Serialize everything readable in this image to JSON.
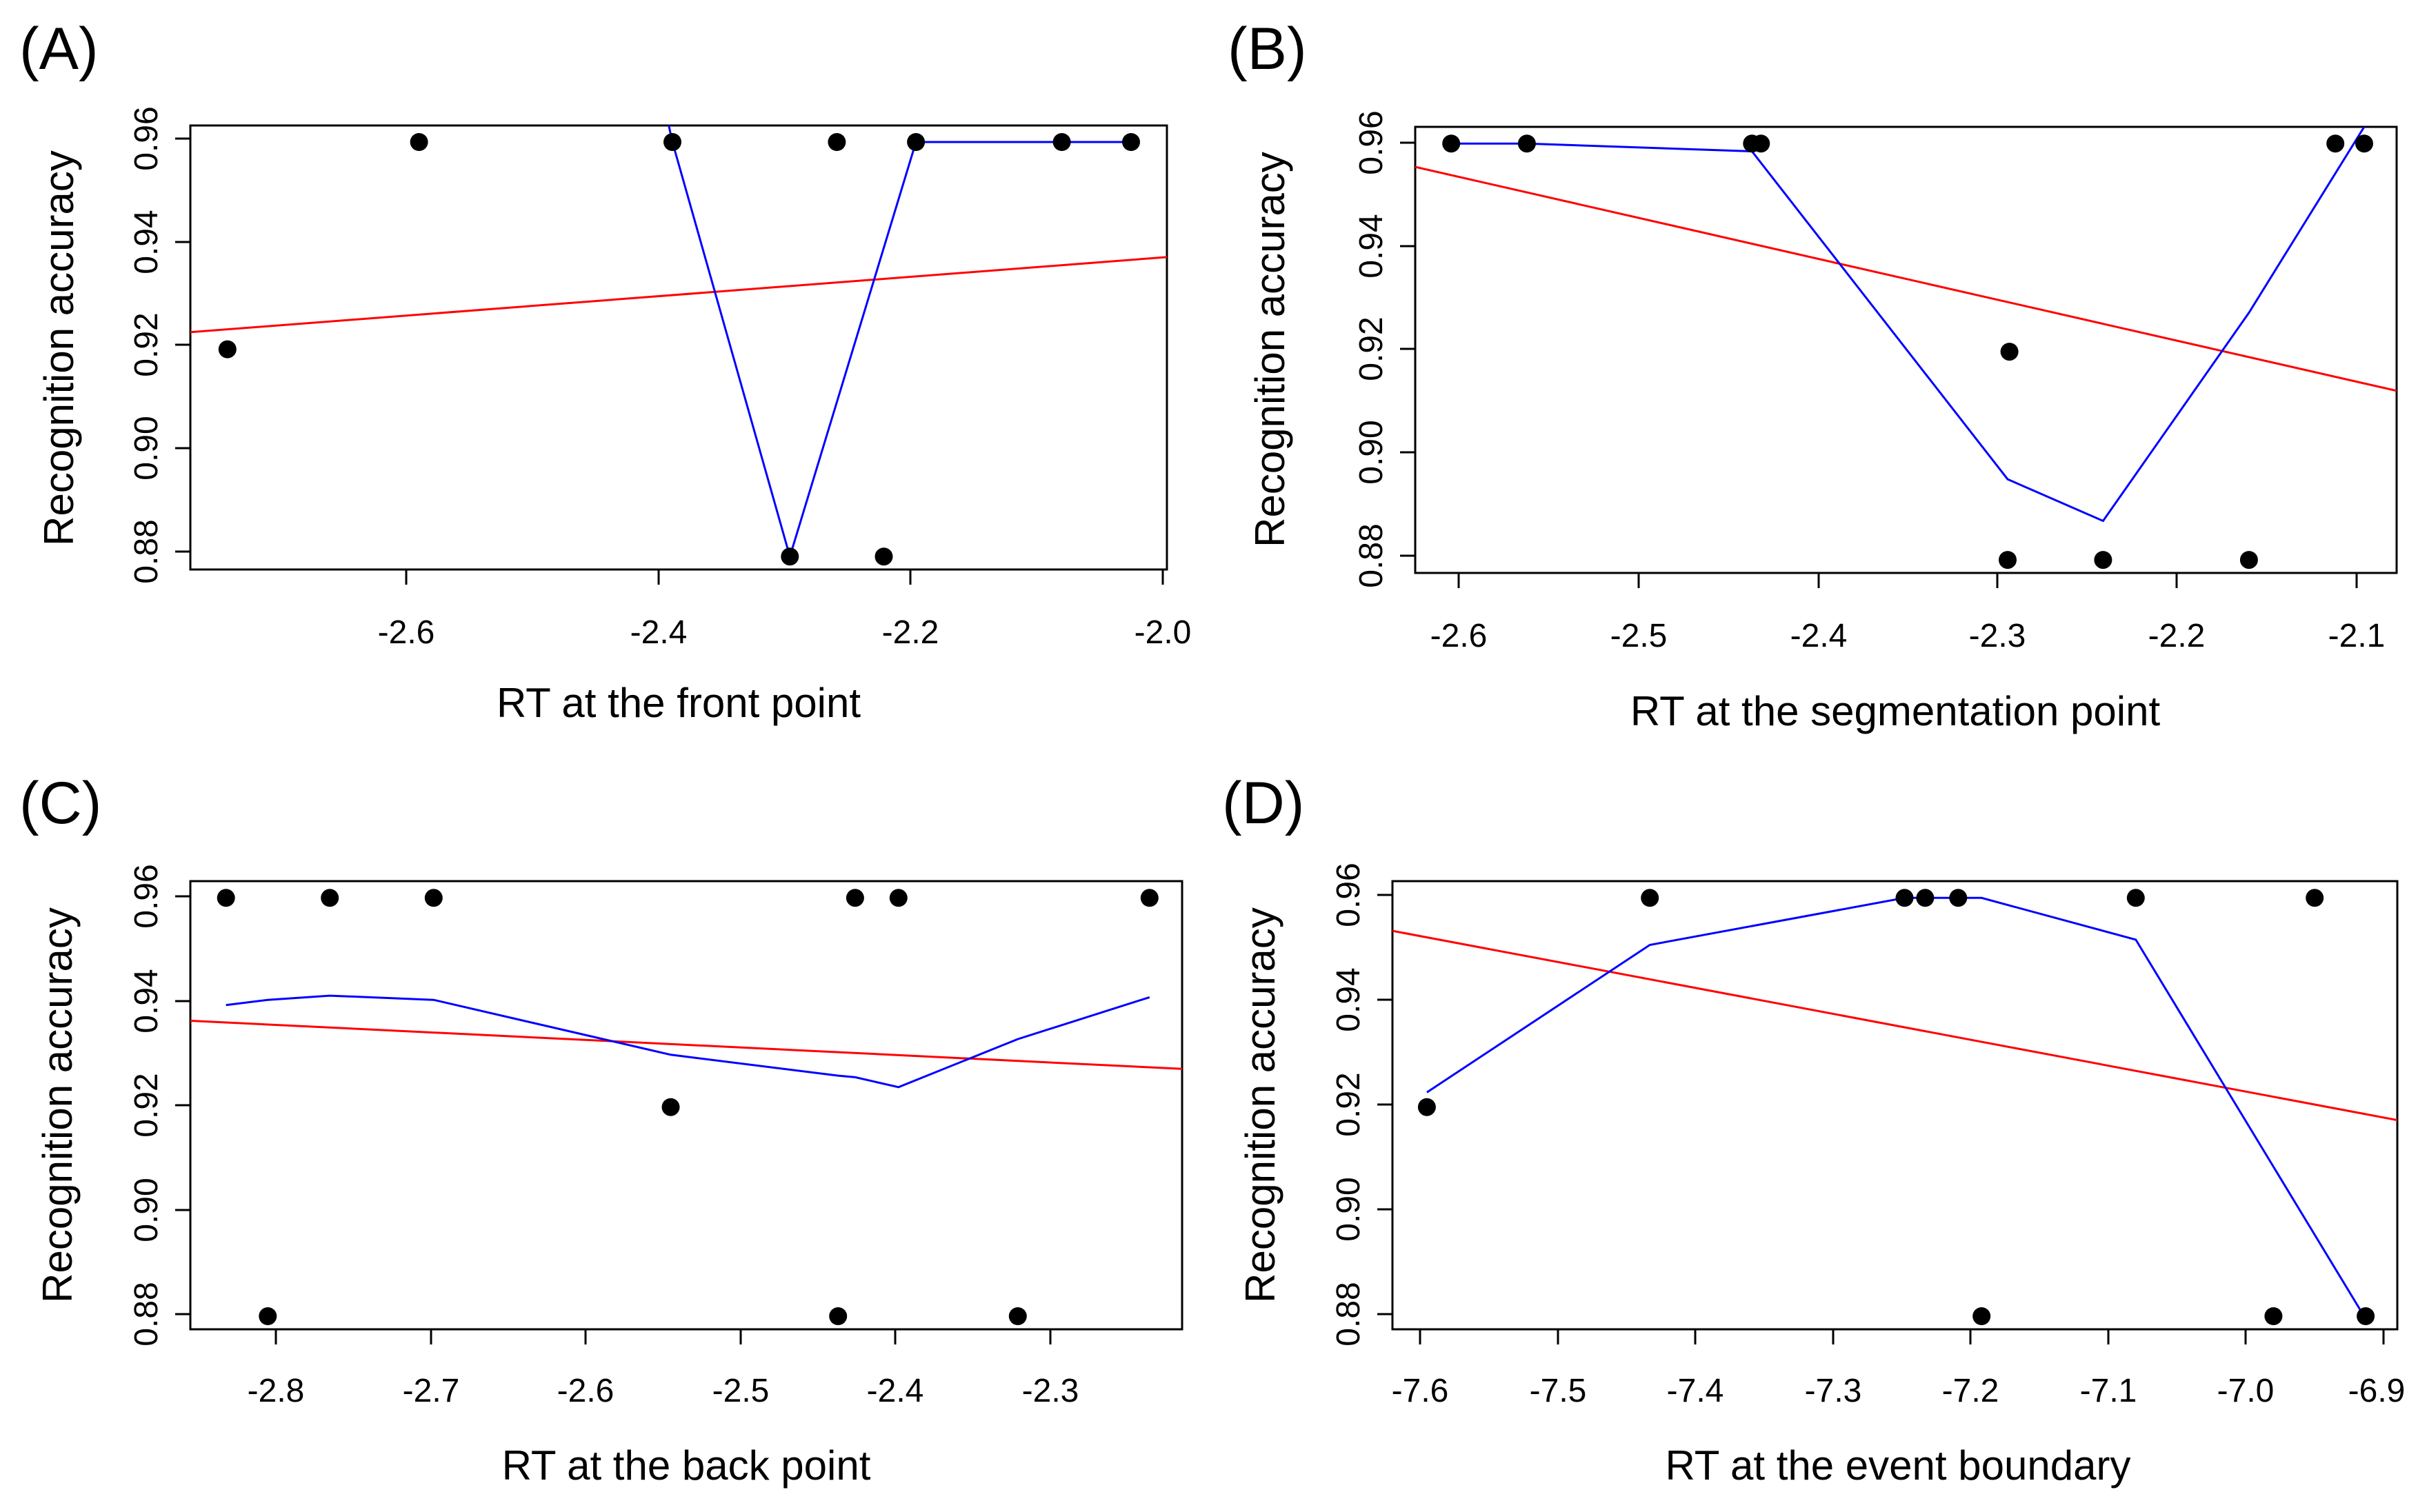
{
  "chart_data": [
    {
      "type": "scatter",
      "panel_label": "(A)",
      "xlabel": "RT at the front point",
      "ylabel": "Recognition accuracy",
      "xlim": [
        -2.785,
        -1.995
      ],
      "ylim": [
        0.8775,
        0.9632
      ],
      "xticks": [
        -2.6,
        -2.4,
        -2.2,
        -2.0
      ],
      "xtick_labels": [
        "-2.6",
        "-2.4",
        "-2.2",
        "-2.0"
      ],
      "yticks": [
        0.88,
        0.9,
        0.92,
        0.94,
        0.96
      ],
      "ytick_labels": [
        "0.88",
        "0.90",
        "0.92",
        "0.94",
        "0.96"
      ],
      "points": [
        {
          "x": -2.755,
          "y": 0.92
        },
        {
          "x": -2.6,
          "y": 0.96
        },
        {
          "x": -2.395,
          "y": 0.96
        },
        {
          "x": -2.3,
          "y": 0.88
        },
        {
          "x": -2.262,
          "y": 0.96
        },
        {
          "x": -2.224,
          "y": 0.88
        },
        {
          "x": -2.198,
          "y": 0.96
        },
        {
          "x": -2.08,
          "y": 0.96
        },
        {
          "x": -2.024,
          "y": 0.96
        }
      ],
      "series": [
        {
          "name": "linear fit",
          "color": "#ff0000",
          "x": [
            -2.785,
            -1.995
          ],
          "y": [
            0.9233,
            0.9378
          ]
        },
        {
          "name": "smoother",
          "color": "#0000ff",
          "x": [
            -2.398,
            -2.395,
            -2.3,
            -2.198,
            -2.08,
            -2.024
          ],
          "y": [
            0.9632,
            0.96,
            0.88,
            0.96,
            0.96,
            0.96
          ]
        }
      ]
    },
    {
      "type": "scatter",
      "panel_label": "(B)",
      "xlabel": "RT at the segmentation point",
      "ylabel": "Recognition accuracy",
      "xlim": [
        -2.623,
        -2.078
      ],
      "ylim": [
        0.8775,
        0.9632
      ],
      "xticks": [
        -2.6,
        -2.5,
        -2.4,
        -2.3,
        -2.2,
        -2.1
      ],
      "xtick_labels": [
        "-2.6",
        "-2.5",
        "-2.4",
        "-2.3",
        "-2.2",
        "-2.1"
      ],
      "yticks": [
        0.88,
        0.9,
        0.92,
        0.94,
        0.96
      ],
      "ytick_labels": [
        "0.88",
        "0.90",
        "0.92",
        "0.94",
        "0.96"
      ],
      "points": [
        {
          "x": -2.603,
          "y": 0.96
        },
        {
          "x": -2.561,
          "y": 0.96
        },
        {
          "x": -2.436,
          "y": 0.96
        },
        {
          "x": -2.431,
          "y": 0.96
        },
        {
          "x": -2.293,
          "y": 0.92
        },
        {
          "x": -2.294,
          "y": 0.88
        },
        {
          "x": -2.241,
          "y": 0.88
        },
        {
          "x": -2.16,
          "y": 0.88
        },
        {
          "x": -2.112,
          "y": 0.96
        },
        {
          "x": -2.096,
          "y": 0.96
        }
      ],
      "series": [
        {
          "name": "linear fit",
          "color": "#ff0000",
          "x": [
            -2.623,
            -2.078
          ],
          "y": [
            0.9555,
            0.9125
          ]
        },
        {
          "name": "smoother",
          "color": "#0000ff",
          "x": [
            -2.603,
            -2.561,
            -2.436,
            -2.294,
            -2.241,
            -2.16,
            -2.096
          ],
          "y": [
            0.96,
            0.96,
            0.9585,
            0.8955,
            0.8875,
            0.9275,
            0.9632
          ]
        }
      ]
    },
    {
      "type": "scatter",
      "panel_label": "(C)",
      "xlabel": "RT at the back point",
      "ylabel": "Recognition accuracy",
      "xlim": [
        -2.853,
        -2.213
      ],
      "ylim": [
        0.8775,
        0.9632
      ],
      "xticks": [
        -2.8,
        -2.7,
        -2.6,
        -2.5,
        -2.4,
        -2.3
      ],
      "xtick_labels": [
        "-2.8",
        "-2.7",
        "-2.6",
        "-2.5",
        "-2.4",
        "-2.3"
      ],
      "yticks": [
        0.88,
        0.9,
        0.92,
        0.94,
        0.96
      ],
      "ytick_labels": [
        "0.88",
        "0.90",
        "0.92",
        "0.94",
        "0.96"
      ],
      "points": [
        {
          "x": -2.83,
          "y": 0.96
        },
        {
          "x": -2.803,
          "y": 0.88
        },
        {
          "x": -2.763,
          "y": 0.96
        },
        {
          "x": -2.696,
          "y": 0.96
        },
        {
          "x": -2.543,
          "y": 0.92
        },
        {
          "x": -2.435,
          "y": 0.88
        },
        {
          "x": -2.424,
          "y": 0.96
        },
        {
          "x": -2.396,
          "y": 0.96
        },
        {
          "x": -2.319,
          "y": 0.88
        },
        {
          "x": -2.234,
          "y": 0.96
        }
      ],
      "series": [
        {
          "name": "linear fit",
          "color": "#ff0000",
          "x": [
            -2.853,
            -2.213
          ],
          "y": [
            0.9365,
            0.9273
          ]
        },
        {
          "name": "smoother",
          "color": "#0000ff",
          "x": [
            -2.83,
            -2.803,
            -2.763,
            -2.696,
            -2.543,
            -2.435,
            -2.424,
            -2.396,
            -2.319,
            -2.234
          ],
          "y": [
            0.9395,
            0.9405,
            0.9413,
            0.9405,
            0.93,
            0.926,
            0.9257,
            0.9238,
            0.933,
            0.941
          ]
        }
      ]
    },
    {
      "type": "scatter",
      "panel_label": "(D)",
      "xlabel": "RT at the event boundary",
      "ylabel": "Recognition accuracy",
      "xlim": [
        -7.62,
        -6.89
      ],
      "ylim": [
        0.8775,
        0.9632
      ],
      "xticks": [
        -7.6,
        -7.5,
        -7.4,
        -7.3,
        -7.2,
        -7.1,
        -7.0,
        -6.9
      ],
      "xtick_labels": [
        "-7.6",
        "-7.5",
        "-7.4",
        "-7.3",
        "-7.2",
        "-7.1",
        "-7.0",
        "-6.9"
      ],
      "yticks": [
        0.88,
        0.9,
        0.92,
        0.94,
        0.96
      ],
      "ytick_labels": [
        "0.88",
        "0.90",
        "0.92",
        "0.94",
        "0.96"
      ],
      "points": [
        {
          "x": -7.595,
          "y": 0.92
        },
        {
          "x": -7.433,
          "y": 0.96
        },
        {
          "x": -7.248,
          "y": 0.96
        },
        {
          "x": -7.233,
          "y": 0.96
        },
        {
          "x": -7.209,
          "y": 0.96
        },
        {
          "x": -7.192,
          "y": 0.88
        },
        {
          "x": -7.08,
          "y": 0.96
        },
        {
          "x": -6.98,
          "y": 0.88
        },
        {
          "x": -6.95,
          "y": 0.96
        },
        {
          "x": -6.913,
          "y": 0.88
        }
      ],
      "series": [
        {
          "name": "linear fit",
          "color": "#ff0000",
          "x": [
            -7.62,
            -6.89
          ],
          "y": [
            0.9537,
            0.9175
          ]
        },
        {
          "name": "smoother",
          "color": "#0000ff",
          "x": [
            -7.595,
            -7.433,
            -7.248,
            -7.209,
            -7.192,
            -7.08,
            -6.913
          ],
          "y": [
            0.9228,
            0.951,
            0.96,
            0.96,
            0.96,
            0.952,
            0.8795
          ]
        }
      ]
    }
  ]
}
